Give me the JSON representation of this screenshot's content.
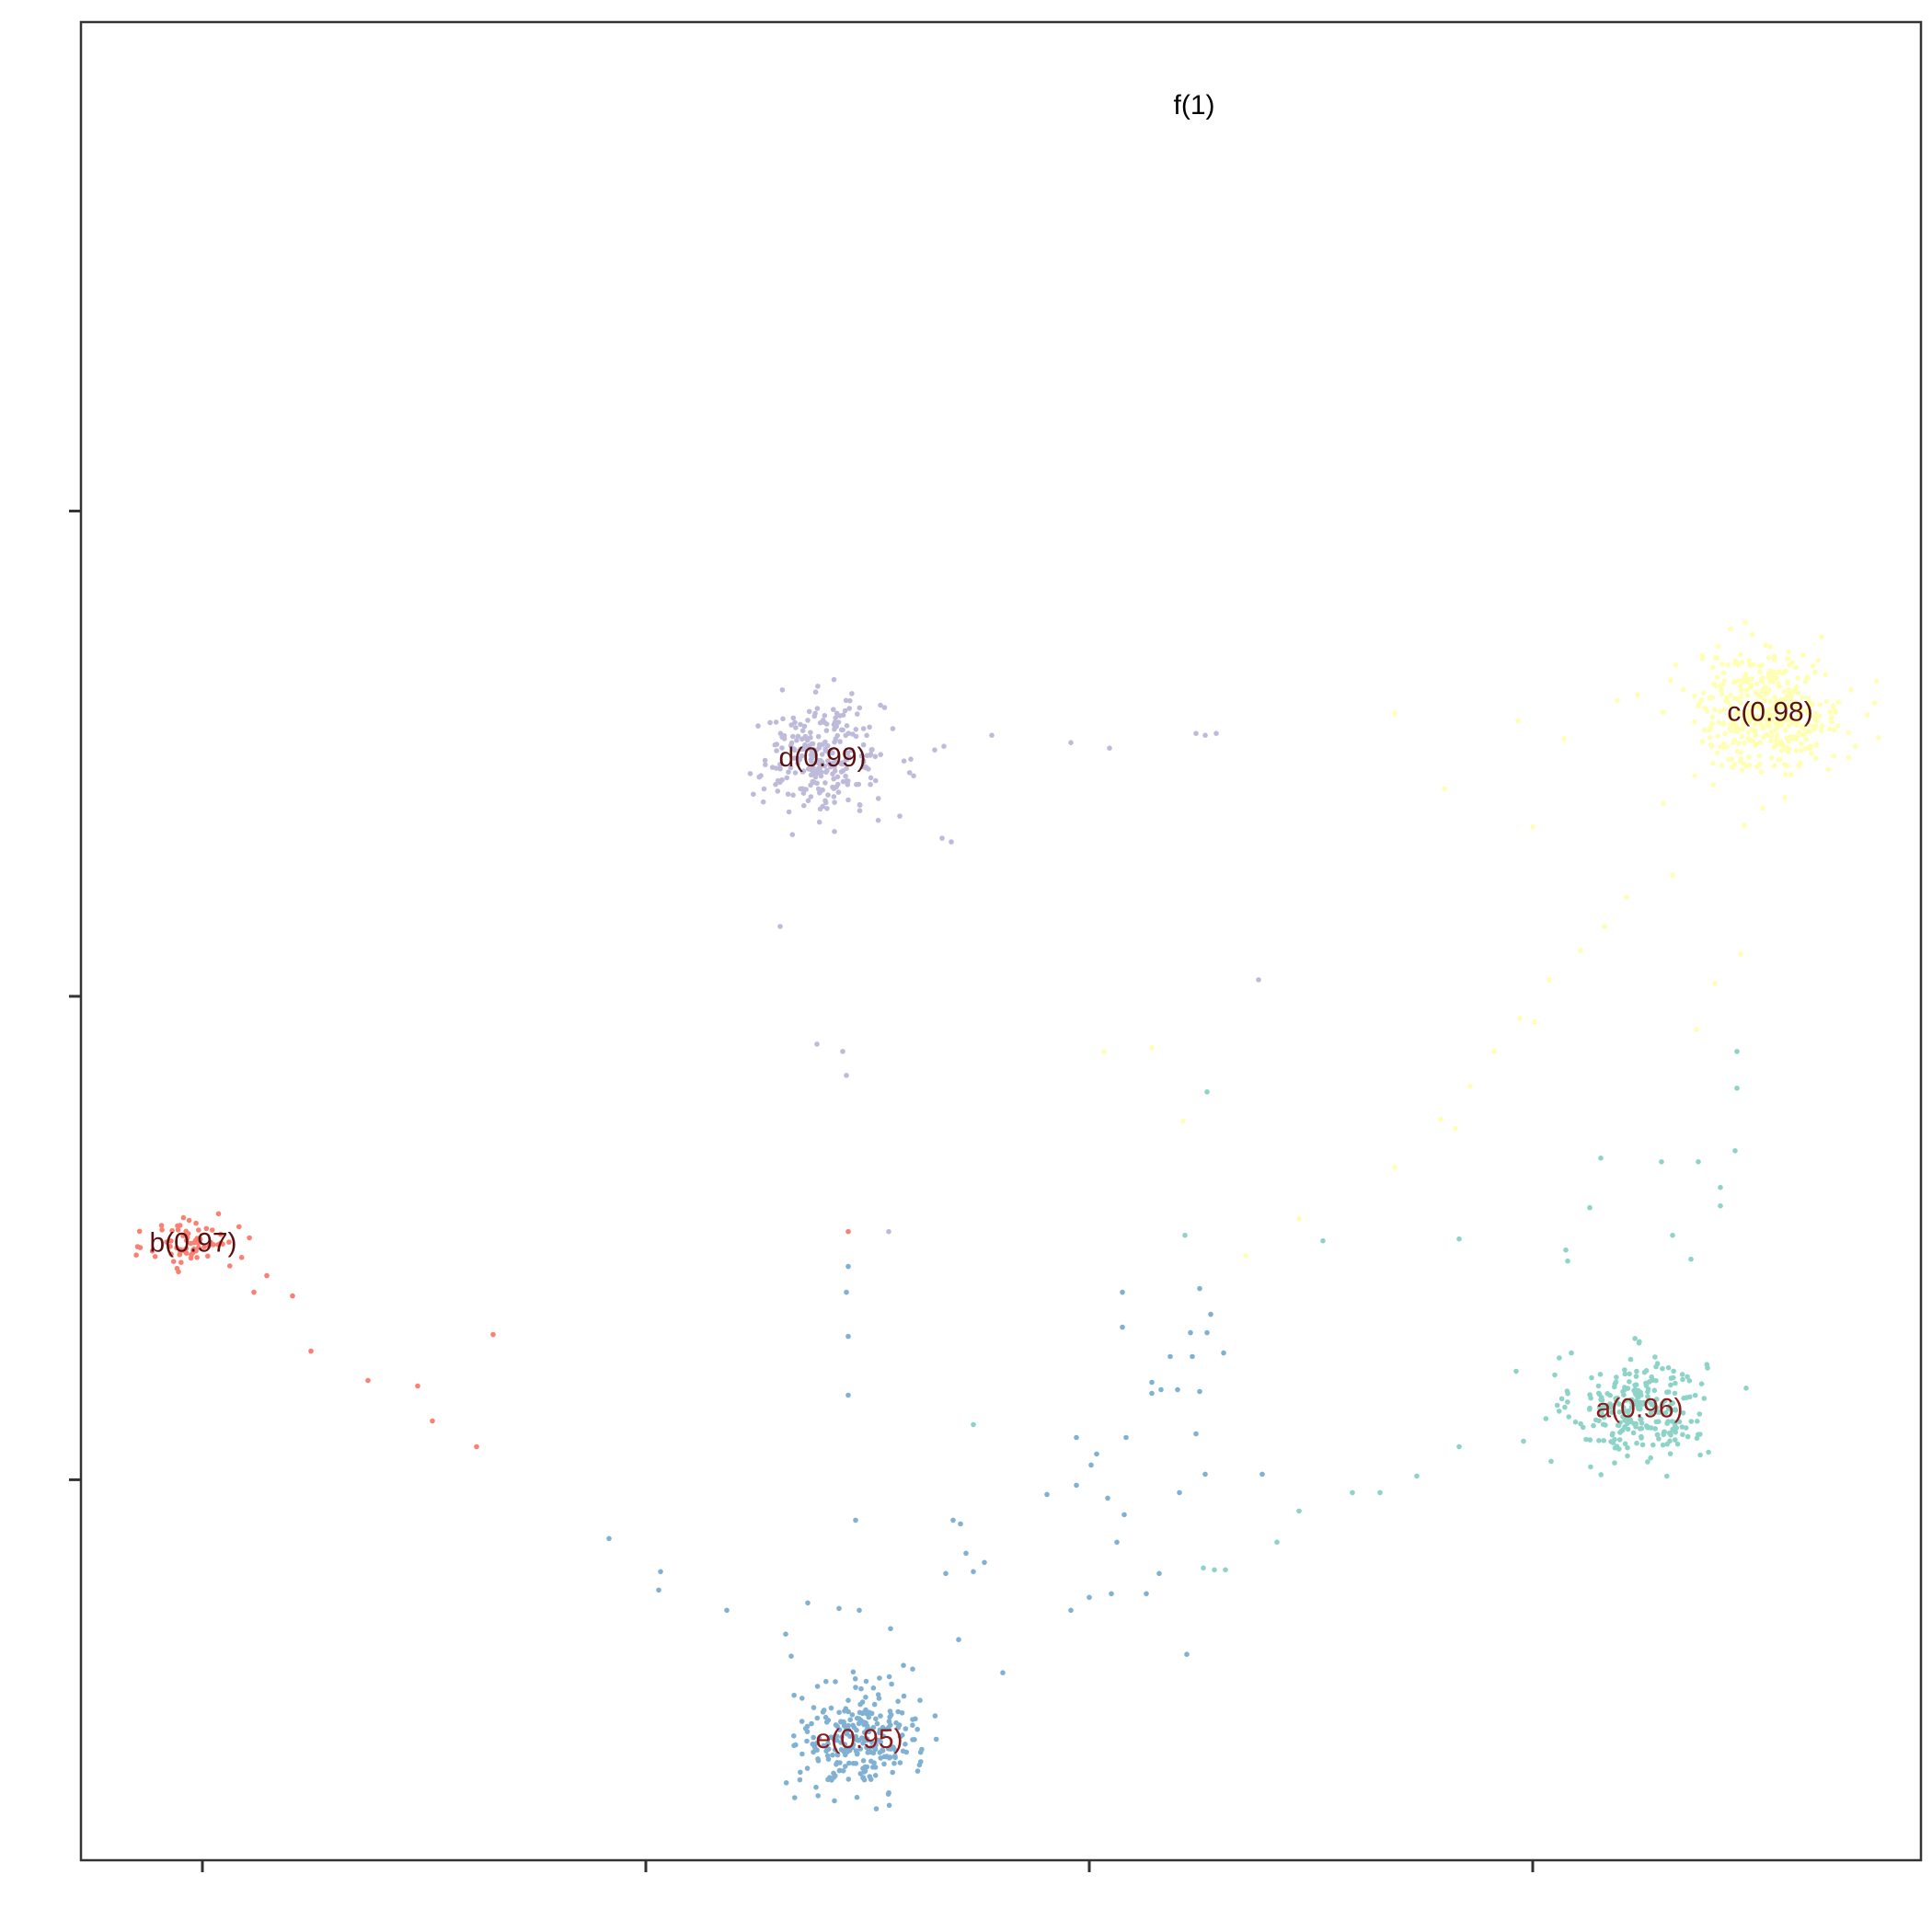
{
  "chart_data": {
    "type": "scatter",
    "title": "",
    "xlabel": "",
    "ylabel": "",
    "xlim": [
      0,
      1
    ],
    "ylim": [
      0,
      1
    ],
    "x_ticks": [
      0.066,
      0.307,
      0.548,
      0.789
    ],
    "y_ticks": [
      0.207,
      0.47,
      0.734
    ],
    "tick_labels_visible": false,
    "grid": false,
    "legend": "none",
    "clusters": [
      {
        "label": "a(0.96)",
        "color": "#8dd3c7",
        "label_color": "#8b1a1a",
        "center": [
          0.847,
          0.246
        ],
        "spread": [
          0.018,
          0.014
        ],
        "count": 260
      },
      {
        "label": "b(0.97)",
        "color": "#fb8072",
        "label_color": "#5a1010",
        "center": [
          0.061,
          0.336
        ],
        "spread": [
          0.012,
          0.008
        ],
        "count": 70
      },
      {
        "label": "c(0.98)",
        "color": "#ffffb3",
        "label_color": "#5a1010",
        "center": [
          0.918,
          0.625
        ],
        "spread": [
          0.02,
          0.016
        ],
        "count": 420
      },
      {
        "label": "d(0.99)",
        "color": "#bebada",
        "label_color": "#5a1010",
        "center": [
          0.403,
          0.6
        ],
        "spread": [
          0.017,
          0.015
        ],
        "count": 260
      },
      {
        "label": "e(0.95)",
        "color": "#80b1d3",
        "label_color": "#8b1a1a",
        "center": [
          0.423,
          0.066
        ],
        "spread": [
          0.016,
          0.014
        ],
        "count": 260
      }
    ],
    "outliers": [
      {
        "color": "#fb8072",
        "points": [
          [
            0.115,
            0.307
          ],
          [
            0.125,
            0.277
          ],
          [
            0.156,
            0.261
          ],
          [
            0.183,
            0.258
          ],
          [
            0.191,
            0.239
          ],
          [
            0.215,
            0.225
          ],
          [
            0.224,
            0.286
          ],
          [
            0.094,
            0.309
          ],
          [
            0.101,
            0.318
          ],
          [
            0.417,
            0.342
          ]
        ]
      },
      {
        "color": "#bebada",
        "points": [
          [
            0.451,
            0.599
          ],
          [
            0.464,
            0.604
          ],
          [
            0.469,
            0.606
          ],
          [
            0.495,
            0.612
          ],
          [
            0.538,
            0.608
          ],
          [
            0.559,
            0.605
          ],
          [
            0.606,
            0.613
          ],
          [
            0.611,
            0.612
          ],
          [
            0.617,
            0.613
          ],
          [
            0.445,
            0.568
          ],
          [
            0.468,
            0.556
          ],
          [
            0.473,
            0.554
          ],
          [
            0.38,
            0.508
          ],
          [
            0.4,
            0.444
          ],
          [
            0.414,
            0.44
          ],
          [
            0.416,
            0.427
          ],
          [
            0.64,
            0.479
          ],
          [
            0.439,
            0.342
          ]
        ]
      },
      {
        "color": "#ffffb3",
        "points": [
          [
            0.835,
            0.631
          ],
          [
            0.846,
            0.634
          ],
          [
            0.806,
            0.61
          ],
          [
            0.893,
            0.607
          ],
          [
            0.877,
            0.59
          ],
          [
            0.86,
            0.575
          ],
          [
            0.904,
            0.563
          ],
          [
            0.865,
            0.536
          ],
          [
            0.84,
            0.524
          ],
          [
            0.789,
            0.562
          ],
          [
            0.714,
            0.624
          ],
          [
            0.741,
            0.583
          ],
          [
            0.781,
            0.62
          ],
          [
            0.828,
            0.508
          ],
          [
            0.815,
            0.495
          ],
          [
            0.798,
            0.479
          ],
          [
            0.782,
            0.458
          ],
          [
            0.768,
            0.44
          ],
          [
            0.755,
            0.421
          ],
          [
            0.739,
            0.403
          ],
          [
            0.714,
            0.377
          ],
          [
            0.902,
            0.493
          ],
          [
            0.888,
            0.477
          ],
          [
            0.878,
            0.452
          ],
          [
            0.556,
            0.44
          ],
          [
            0.582,
            0.442
          ],
          [
            0.599,
            0.402
          ],
          [
            0.662,
            0.349
          ],
          [
            0.633,
            0.329
          ],
          [
            0.747,
            0.398
          ],
          [
            0.79,
            0.456
          ],
          [
            0.926,
            0.578
          ]
        ]
      },
      {
        "color": "#8dd3c7",
        "points": [
          [
            0.9,
            0.44
          ],
          [
            0.9,
            0.42
          ],
          [
            0.899,
            0.386
          ],
          [
            0.879,
            0.38
          ],
          [
            0.859,
            0.38
          ],
          [
            0.826,
            0.382
          ],
          [
            0.891,
            0.366
          ],
          [
            0.891,
            0.356
          ],
          [
            0.865,
            0.34
          ],
          [
            0.875,
            0.327
          ],
          [
            0.82,
            0.355
          ],
          [
            0.807,
            0.332
          ],
          [
            0.808,
            0.326
          ],
          [
            0.749,
            0.338
          ],
          [
            0.6,
            0.34
          ],
          [
            0.612,
            0.418
          ],
          [
            0.675,
            0.337
          ],
          [
            0.801,
            0.264
          ],
          [
            0.78,
            0.266
          ],
          [
            0.81,
            0.276
          ],
          [
            0.784,
            0.228
          ],
          [
            0.749,
            0.225
          ],
          [
            0.726,
            0.209
          ],
          [
            0.706,
            0.2
          ],
          [
            0.691,
            0.2
          ],
          [
            0.662,
            0.19
          ],
          [
            0.65,
            0.173
          ],
          [
            0.622,
            0.158
          ],
          [
            0.616,
            0.158
          ],
          [
            0.61,
            0.159
          ],
          [
            0.485,
            0.237
          ],
          [
            0.799,
            0.217
          ],
          [
            0.818,
            0.229
          ]
        ]
      },
      {
        "color": "#80b1d3",
        "points": [
          [
            0.417,
            0.323
          ],
          [
            0.416,
            0.309
          ],
          [
            0.417,
            0.285
          ],
          [
            0.417,
            0.253
          ],
          [
            0.287,
            0.175
          ],
          [
            0.315,
            0.157
          ],
          [
            0.314,
            0.147
          ],
          [
            0.351,
            0.136
          ],
          [
            0.383,
            0.123
          ],
          [
            0.386,
            0.111
          ],
          [
            0.395,
            0.14
          ],
          [
            0.412,
            0.137
          ],
          [
            0.423,
            0.136
          ],
          [
            0.44,
            0.126
          ],
          [
            0.447,
            0.106
          ],
          [
            0.452,
            0.104
          ],
          [
            0.456,
            0.087
          ],
          [
            0.421,
            0.185
          ],
          [
            0.474,
            0.185
          ],
          [
            0.478,
            0.183
          ],
          [
            0.491,
            0.162
          ],
          [
            0.481,
            0.167
          ],
          [
            0.485,
            0.157
          ],
          [
            0.47,
            0.156
          ],
          [
            0.477,
            0.12
          ],
          [
            0.501,
            0.102
          ],
          [
            0.549,
            0.215
          ],
          [
            0.541,
            0.23
          ],
          [
            0.552,
            0.221
          ],
          [
            0.525,
            0.199
          ],
          [
            0.541,
            0.204
          ],
          [
            0.558,
            0.197
          ],
          [
            0.567,
            0.188
          ],
          [
            0.538,
            0.136
          ],
          [
            0.548,
            0.143
          ],
          [
            0.579,
            0.145
          ],
          [
            0.596,
            0.256
          ],
          [
            0.603,
            0.287
          ],
          [
            0.608,
            0.311
          ],
          [
            0.612,
            0.287
          ],
          [
            0.614,
            0.297
          ],
          [
            0.592,
            0.274
          ],
          [
            0.582,
            0.26
          ],
          [
            0.582,
            0.254
          ],
          [
            0.587,
            0.256
          ],
          [
            0.604,
            0.274
          ],
          [
            0.608,
            0.255
          ],
          [
            0.621,
            0.276
          ],
          [
            0.566,
            0.29
          ],
          [
            0.566,
            0.309
          ],
          [
            0.597,
            0.2
          ],
          [
            0.611,
            0.21
          ],
          [
            0.642,
            0.21
          ],
          [
            0.606,
            0.232
          ],
          [
            0.568,
            0.23
          ],
          [
            0.586,
            0.156
          ],
          [
            0.601,
            0.112
          ],
          [
            0.56,
            0.145
          ],
          [
            0.563,
            0.173
          ]
        ]
      }
    ],
    "annotation": {
      "text": "f(1)",
      "x": 0.605,
      "y": 0.955,
      "color": "#000000"
    }
  }
}
